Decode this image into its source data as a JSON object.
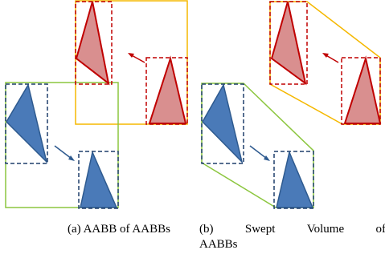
{
  "colors": {
    "red_fill": "#d98f8f",
    "red_stroke": "#c00000",
    "blue_fill": "#4a7ab8",
    "blue_stroke": "#2e5a8f",
    "dash_blue": "#1f3f6b",
    "yellow": "#f5b800",
    "green": "#8cc63f"
  },
  "captions": {
    "a": "(a) AABB of AABBs",
    "b_line1": [
      "(b)",
      "Swept",
      "Volume",
      "of"
    ],
    "b_line2": "AABBs"
  }
}
